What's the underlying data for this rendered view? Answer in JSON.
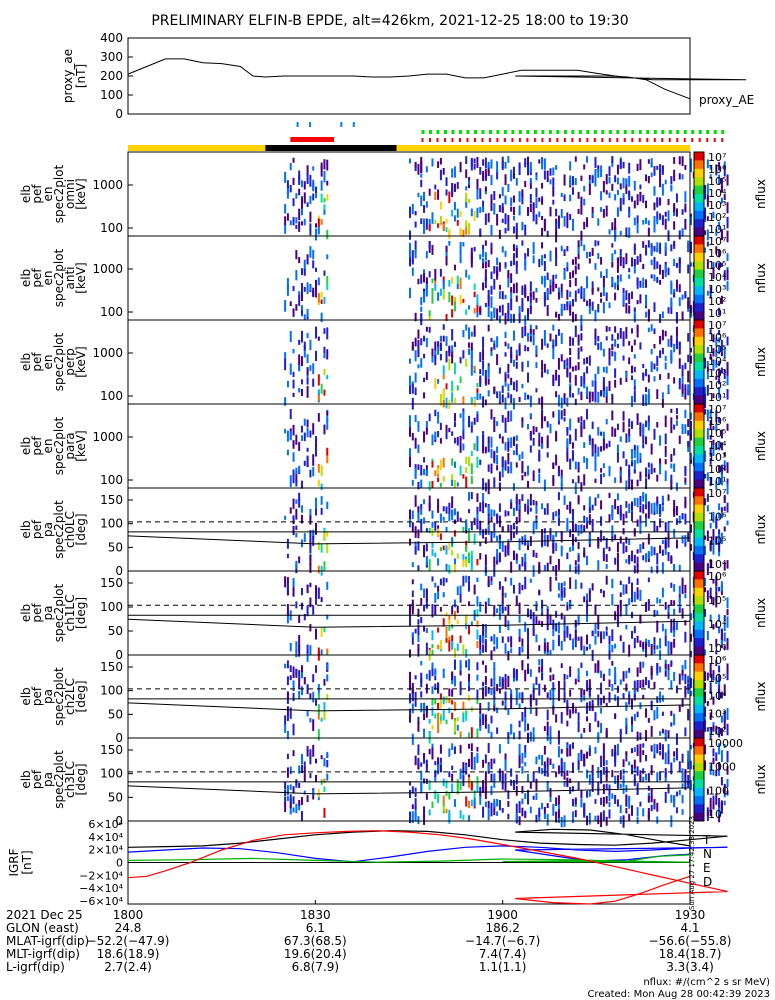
{
  "title": "PRELIMINARY ELFIN-B EPDE, alt=426km, 2021-12-25 18:00 to 19:30",
  "colors": {
    "bar_yellow": "#ffd200",
    "bar_black": "#000000",
    "marker_red": "#ff0000",
    "marker_green": "#00e000",
    "marker_blue": "#0080ff",
    "T": "#000000",
    "N": "#0000ff",
    "E": "#00b000",
    "D": "#ff0000"
  },
  "chart_data": [
    {
      "type": "line",
      "name": "proxy_ae",
      "ylabel_lines": [
        "proxy_ae",
        "[nT]"
      ],
      "ylim": [
        0,
        400
      ],
      "yticks": [
        "400",
        "300",
        "200",
        "100",
        "0"
      ],
      "series": [
        {
          "name": "proxy_AE",
          "x": [
            1800,
            1803,
            1806,
            1809,
            1812,
            1815,
            1818,
            1820,
            1822,
            1825,
            1828,
            1830,
            1833,
            1836,
            1839,
            1842,
            1845,
            1848,
            1851,
            1854,
            1857,
            1860,
            1863,
            1866,
            1869,
            1872,
            1875,
            1878,
            1881,
            1884,
            1887,
            1890,
            1893,
            1896,
            1899,
            1902,
            1905,
            1908,
            1911,
            1914,
            1917,
            1920,
            1923,
            1926,
            1930
          ],
          "y": [
            210,
            250,
            290,
            290,
            270,
            265,
            250,
            200,
            195,
            200,
            200,
            200,
            200,
            200,
            195,
            195,
            200,
            210,
            210,
            190,
            190,
            210,
            230,
            230,
            230,
            230,
            215,
            200,
            190,
            180,
            180,
            180,
            180,
            180,
            180,
            200,
            200,
            200,
            200,
            200,
            200,
            195,
            180,
            130,
            80
          ]
        }
      ]
    },
    {
      "type": "heatmap",
      "name": "elb pef en spec2plot omni",
      "ylabel_lines": [
        "elb",
        "pef",
        "en",
        "spec2plot",
        "omni",
        "[keV]"
      ],
      "yscale": "log",
      "yticks": [
        "1000",
        "100"
      ],
      "colorbar": {
        "label": "nflux",
        "ticks": [
          "10⁷",
          "10⁶",
          "10⁵",
          "10⁴",
          "10³",
          "10²",
          "10¹"
        ]
      }
    },
    {
      "type": "heatmap",
      "name": "elb pef en spec2plot anti",
      "ylabel_lines": [
        "elb",
        "pef",
        "en",
        "spec2plot",
        "anti",
        "[keV]"
      ],
      "yscale": "log",
      "yticks": [
        "1000",
        "100"
      ],
      "colorbar": {
        "label": "nflux",
        "ticks": [
          "10⁷",
          "10⁶",
          "10⁵",
          "10⁴",
          "10³",
          "10²",
          "10¹"
        ]
      }
    },
    {
      "type": "heatmap",
      "name": "elb pef en spec2plot perp",
      "ylabel_lines": [
        "elb",
        "pef",
        "en",
        "spec2plot",
        "perp",
        "[keV]"
      ],
      "yscale": "log",
      "yticks": [
        "1000",
        "100"
      ],
      "colorbar": {
        "label": "nflux",
        "ticks": [
          "10⁷",
          "10⁶",
          "10⁵",
          "10⁴",
          "10³",
          "10²",
          "10¹"
        ]
      }
    },
    {
      "type": "heatmap",
      "name": "elb pef en spec2plot para",
      "ylabel_lines": [
        "elb",
        "pef",
        "en",
        "spec2plot",
        "para",
        "[keV]"
      ],
      "yscale": "log",
      "yticks": [
        "1000",
        "100"
      ],
      "colorbar": {
        "label": "nflux",
        "ticks": [
          "10⁷",
          "10⁶",
          "10⁵",
          "10⁴",
          "10³",
          "10²",
          "10¹"
        ]
      }
    },
    {
      "type": "heatmap",
      "name": "elb pef pa spec2plot ch0LC",
      "ylabel_lines": [
        "elb",
        "pef",
        "pa",
        "spec2plot",
        "ch0LC",
        "[deg]"
      ],
      "ylim": [
        0,
        180
      ],
      "yticks": [
        "150",
        "100",
        "50",
        "0"
      ],
      "colorbar": {
        "label": "nflux",
        "ticks": [
          "10⁷",
          "10⁶",
          "10⁵",
          "10⁴"
        ]
      }
    },
    {
      "type": "heatmap",
      "name": "elb pef pa spec2plot ch1LC",
      "ylabel_lines": [
        "elb",
        "pef",
        "pa",
        "spec2plot",
        "ch1LC",
        "[deg]"
      ],
      "ylim": [
        0,
        180
      ],
      "yticks": [
        "150",
        "100",
        "50",
        "0"
      ],
      "colorbar": {
        "label": "nflux",
        "ticks": [
          "10⁶",
          "10⁵",
          "10⁴",
          "10³"
        ]
      }
    },
    {
      "type": "heatmap",
      "name": "elb pef pa spec2plot ch2LC",
      "ylabel_lines": [
        "elb",
        "pef",
        "pa",
        "spec2plot",
        "ch2LC",
        "[deg]"
      ],
      "ylim": [
        0,
        180
      ],
      "yticks": [
        "150",
        "100",
        "50",
        "0"
      ],
      "colorbar": {
        "label": "nflux",
        "ticks": [
          "10⁶",
          "10⁵",
          "10⁴",
          "10³",
          "10²"
        ]
      }
    },
    {
      "type": "heatmap",
      "name": "elb pef pa spec2plot ch3LC",
      "ylabel_lines": [
        "elb",
        "pef",
        "pa",
        "spec2plot",
        "ch3LC",
        "[deg]"
      ],
      "ylim": [
        0,
        180
      ],
      "yticks": [
        "150",
        "100",
        "50",
        "0"
      ],
      "colorbar": {
        "label": "nflux",
        "ticks": [
          "10000",
          "1000",
          "100",
          "10"
        ]
      }
    },
    {
      "type": "line",
      "name": "IGRF",
      "ylabel_lines": [
        "IGRF",
        "[nT]"
      ],
      "ylim": [
        -60000,
        60000
      ],
      "yticks": [
        "6×10⁴",
        "4×10⁴",
        "2×10⁴",
        "0",
        "−2×10⁴",
        "−4×10⁴",
        "−6×10⁴"
      ],
      "series": [
        {
          "name": "T",
          "x": [
            1800,
            1806,
            1812,
            1818,
            1824,
            1830,
            1836,
            1842,
            1848,
            1854,
            1860,
            1866,
            1872,
            1878,
            1884,
            1890,
            1896,
            1902,
            1908,
            1914,
            1920,
            1926,
            1930
          ],
          "y": [
            22000,
            23000,
            24000,
            28000,
            34000,
            40000,
            44000,
            46000,
            45000,
            40000,
            33000,
            28000,
            26000,
            25000,
            28000,
            33000,
            38000,
            44000,
            48000,
            47000,
            40000,
            30000,
            24000
          ]
        },
        {
          "name": "N",
          "x": [
            1800,
            1806,
            1812,
            1818,
            1824,
            1830,
            1836,
            1842,
            1848,
            1854,
            1860,
            1866,
            1872,
            1878,
            1884,
            1890,
            1896,
            1902,
            1908,
            1914,
            1920,
            1926,
            1930
          ],
          "y": [
            15000,
            18000,
            21000,
            20000,
            14000,
            6000,
            1000,
            8000,
            16000,
            22000,
            24000,
            22000,
            18000,
            16000,
            18000,
            21000,
            22000,
            18000,
            10000,
            2000,
            4000,
            10000,
            12000
          ]
        },
        {
          "name": "E",
          "x": [
            1800,
            1810,
            1820,
            1830,
            1840,
            1850,
            1860,
            1870,
            1880,
            1890,
            1900,
            1910,
            1920,
            1925,
            1930
          ],
          "y": [
            3000,
            4000,
            6000,
            3000,
            500,
            2000,
            5000,
            4000,
            2000,
            500,
            1500,
            2500,
            2000,
            9000,
            11000
          ]
        },
        {
          "name": "D",
          "x": [
            1800,
            1803,
            1806,
            1810,
            1815,
            1820,
            1825,
            1830,
            1835,
            1840,
            1845,
            1850,
            1855,
            1860,
            1866,
            1872,
            1878,
            1884,
            1890,
            1896,
            1902,
            1908,
            1914,
            1918,
            1922,
            1926,
            1930
          ],
          "y": [
            -22000,
            -20000,
            -12000,
            0,
            18000,
            32000,
            40000,
            43000,
            45000,
            46000,
            44000,
            40000,
            34000,
            26000,
            16000,
            6000,
            -6000,
            -18000,
            -30000,
            -42000,
            -52000,
            -58000,
            -60000,
            -56000,
            -45000,
            -32000,
            -20000
          ]
        }
      ]
    }
  ],
  "time_axis": {
    "ticks": [
      "1800",
      "1830",
      "1900",
      "1930"
    ],
    "rows": [
      {
        "label": "2021 Dec 25",
        "values": [
          "",
          "",
          "",
          ""
        ]
      },
      {
        "label": "GLON (east)",
        "values": [
          "24.8",
          "6.1",
          "186.2",
          "4.1"
        ]
      },
      {
        "label": "MLAT-igrf(dip)",
        "values": [
          "−52.2(−47.9)",
          "67.3(68.5)",
          "−14.7(−6.7)",
          "−56.6(−55.8)"
        ]
      },
      {
        "label": "MLT-igrf(dip)",
        "values": [
          "18.6(18.9)",
          "19.6(20.4)",
          "7.4(7.4)",
          "18.4(18.7)"
        ]
      },
      {
        "label": "L-igrf(dip)",
        "values": [
          "2.7(2.4)",
          "6.8(7.9)",
          "1.1(1.1)",
          "3.3(3.4)"
        ]
      }
    ]
  },
  "footer": {
    "units": "nflux: #/(cm^2 s sr MeV)",
    "created": "Created: Mon Aug 28 00:42:39 2023",
    "side_stamp": "Sun Aug 27 17:42:38 2023"
  }
}
